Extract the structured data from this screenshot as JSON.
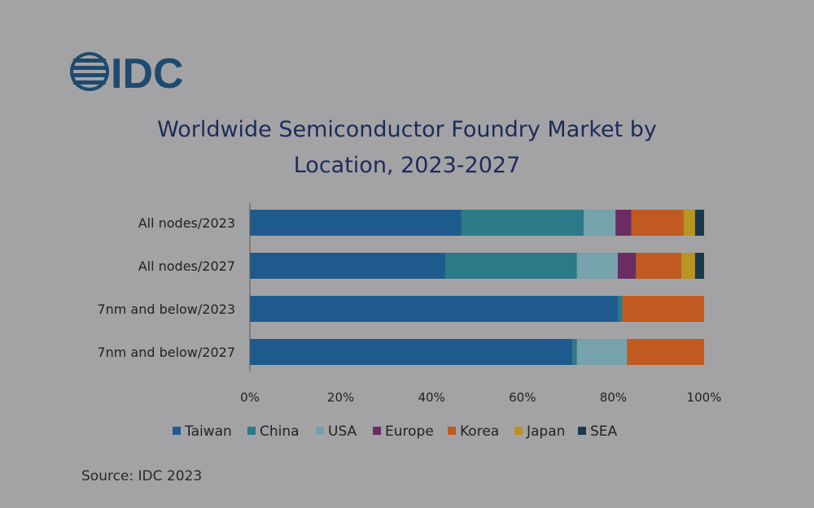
{
  "logo": {
    "text": "IDC",
    "name": "idc-logo"
  },
  "chart_data": {
    "type": "bar",
    "orientation": "horizontal",
    "stacked": true,
    "title_line1": "Worldwide Semiconductor Foundry Market by",
    "title_line2": "Location, 2023-2027",
    "categories": [
      "All nodes/2023",
      "All nodes/2027",
      "7nm and below/2023",
      "7nm and below/2027"
    ],
    "series": [
      {
        "name": "Taiwan",
        "color": "#1f5a8f",
        "values": [
          46.5,
          43,
          81,
          71
        ]
      },
      {
        "name": "China",
        "color": "#2a7a88",
        "values": [
          27,
          29,
          1,
          1
        ]
      },
      {
        "name": "USA",
        "color": "#76a2ab",
        "values": [
          7,
          9,
          0,
          11
        ]
      },
      {
        "name": "Europe",
        "color": "#6a2c62",
        "values": [
          3.5,
          4,
          0,
          0
        ]
      },
      {
        "name": "Korea",
        "color": "#c05a20",
        "values": [
          11.5,
          10,
          18,
          17
        ]
      },
      {
        "name": "Japan",
        "color": "#b89420",
        "values": [
          2.5,
          3,
          0,
          0
        ]
      },
      {
        "name": "SEA",
        "color": "#1a3a4a",
        "values": [
          2,
          2,
          0,
          0
        ]
      }
    ],
    "xlim": [
      0,
      100
    ],
    "xticks": [
      "0%",
      "20%",
      "40%",
      "60%",
      "80%",
      "100%"
    ],
    "legend_position": "bottom",
    "grid": false
  },
  "source": "Source: IDC 2023"
}
